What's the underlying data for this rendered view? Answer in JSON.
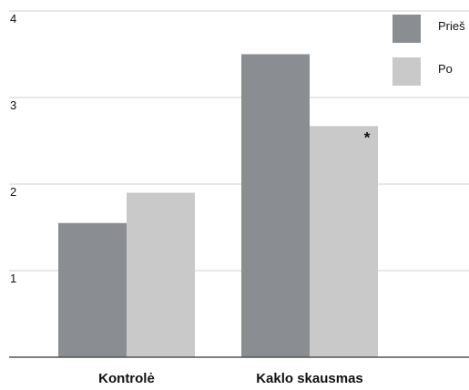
{
  "chart_data": {
    "type": "bar",
    "title": "",
    "xlabel": "",
    "ylabel": "",
    "categories": [
      "Kontrolė",
      "Kaklo skausmas"
    ],
    "series": [
      {
        "name": "Prieš",
        "values": [
          1.55,
          3.5
        ],
        "color": "#8a8e93"
      },
      {
        "name": "Po",
        "values": [
          1.9,
          2.67
        ],
        "color": "#c9c9c9"
      }
    ],
    "ylim": [
      0,
      4
    ],
    "yticks": [
      "1",
      "2",
      "3",
      "4"
    ],
    "grid": true,
    "legend_position": "top-right",
    "annotations": [
      {
        "text": "*",
        "category": "Kaklo skausmas",
        "series": "Po"
      }
    ]
  },
  "colors": {
    "grid": "#d0d0d0",
    "baseline": "#555555",
    "text": "#111111"
  }
}
